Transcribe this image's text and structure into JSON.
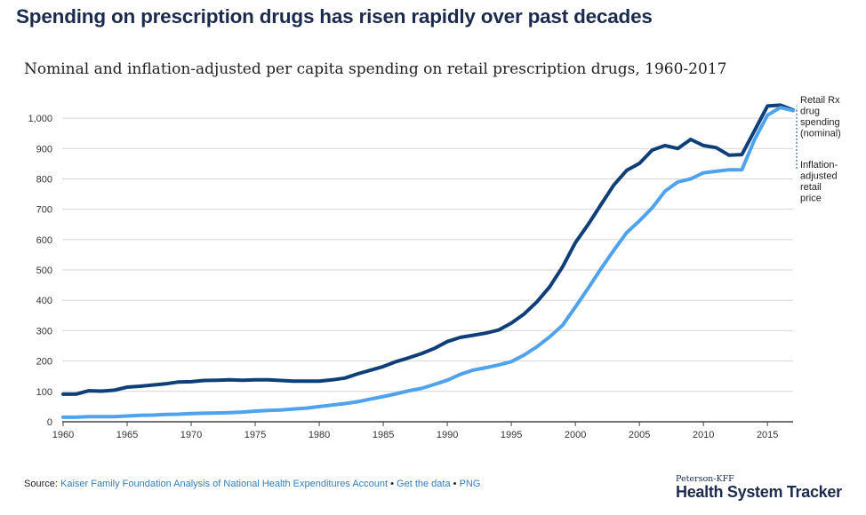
{
  "header": {
    "headline": "Spending on prescription drugs has risen rapidly over past decades"
  },
  "chart_data": {
    "type": "line",
    "title": "Nominal and inflation-adjusted per capita spending on retail prescription drugs, 1960-2017",
    "xlabel": "",
    "ylabel": "",
    "xlim": [
      1960,
      2017
    ],
    "ylim": [
      0,
      1050
    ],
    "x_ticks": [
      1960,
      1965,
      1970,
      1975,
      1980,
      1985,
      1990,
      1995,
      2000,
      2005,
      2010,
      2015
    ],
    "y_ticks": [
      0,
      100,
      200,
      300,
      400,
      500,
      600,
      700,
      800,
      900,
      1000
    ],
    "y_tick_labels": [
      "0",
      "100",
      "200",
      "300",
      "400",
      "500",
      "600",
      "700",
      "800",
      "900",
      "1,000"
    ],
    "grid": true,
    "x": [
      1960,
      1961,
      1962,
      1963,
      1964,
      1965,
      1966,
      1967,
      1968,
      1969,
      1970,
      1971,
      1972,
      1973,
      1974,
      1975,
      1976,
      1977,
      1978,
      1979,
      1980,
      1981,
      1982,
      1983,
      1984,
      1985,
      1986,
      1987,
      1988,
      1989,
      1990,
      1991,
      1992,
      1993,
      1994,
      1995,
      1996,
      1997,
      1998,
      1999,
      2000,
      2001,
      2002,
      2003,
      2004,
      2005,
      2006,
      2007,
      2008,
      2009,
      2010,
      2011,
      2012,
      2013,
      2014,
      2015,
      2016,
      2017
    ],
    "series": [
      {
        "name": "Retail Rx drug spending (nominal)",
        "label_lines": [
          "Retail Rx",
          "drug",
          "spending",
          "(nominal)"
        ],
        "color": "#4fa3ec",
        "values": [
          15,
          15,
          17,
          17,
          17,
          19,
          21,
          22,
          24,
          25,
          27,
          28,
          29,
          30,
          32,
          35,
          37,
          39,
          42,
          45,
          50,
          55,
          60,
          66,
          75,
          83,
          92,
          102,
          110,
          123,
          137,
          156,
          170,
          178,
          187,
          198,
          220,
          247,
          280,
          318,
          378,
          440,
          504,
          565,
          623,
          662,
          705,
          760,
          790,
          800,
          820,
          825,
          830,
          830,
          930,
          1010,
          1035,
          1025
        ]
      },
      {
        "name": "Inflation-adjusted retail price",
        "label_lines": [
          "Inflation-",
          "adjusted",
          "retail",
          "price"
        ],
        "color": "#0f3f78",
        "values": [
          91,
          91,
          102,
          101,
          104,
          114,
          117,
          121,
          125,
          131,
          132,
          136,
          137,
          138,
          137,
          138,
          138,
          136,
          134,
          134,
          134,
          138,
          144,
          158,
          170,
          182,
          198,
          211,
          225,
          242,
          264,
          278,
          285,
          292,
          302,
          325,
          355,
          395,
          445,
          510,
          590,
          650,
          715,
          780,
          828,
          851,
          895,
          910,
          900,
          930,
          910,
          903,
          878,
          880,
          960,
          1040,
          1043,
          1027
        ]
      }
    ]
  },
  "footer": {
    "source_label": "Source:",
    "source_link": "Kaiser Family Foundation Analysis of National Health Expenditures Account",
    "separator1": " • ",
    "get_data": "Get the data",
    "separator2": " • ",
    "png": "PNG"
  },
  "brand": {
    "small": "Peterson-KFF",
    "big": "Health System Tracker"
  }
}
